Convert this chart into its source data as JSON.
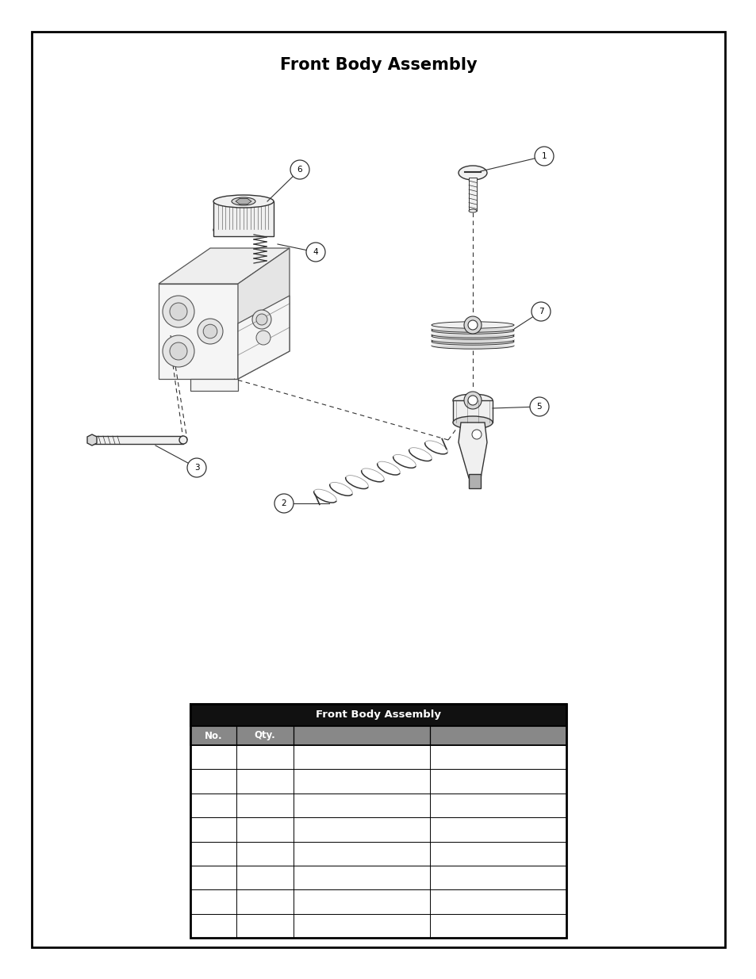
{
  "title": "Front Body Assembly",
  "title_fontsize": 15,
  "title_fontweight": "bold",
  "bg_color": "#ffffff",
  "border_color": "#000000",
  "table_title": "Front Body Assembly",
  "table_headers": [
    "No.",
    "Qty.",
    "",
    ""
  ],
  "table_num_rows": 8,
  "table_header_bg": "#111111",
  "table_subheader_bg": "#888888",
  "table_title_color": "#ffffff",
  "table_header_color": "#ffffff",
  "page_bg": "#ffffff",
  "inner_bg": "#ffffff",
  "line_color": "#333333",
  "light_fill": "#f0f0f0",
  "mid_fill": "#d8d8d8",
  "dark_fill": "#b0b0b0"
}
